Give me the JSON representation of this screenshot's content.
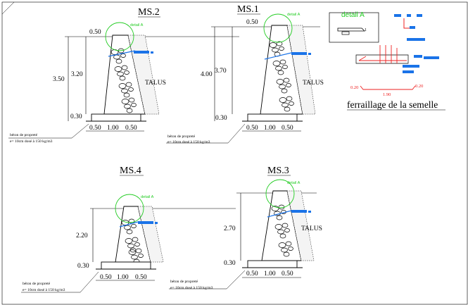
{
  "sheet": {
    "walls": [
      {
        "id": "ms2",
        "title": "MS.2",
        "top_dim": "0.50",
        "total_height": "3.50",
        "inner_height": "3.20",
        "base_dim": "0.30",
        "base_widths": [
          "0.50",
          "1.00",
          "0.50"
        ],
        "talus": "TALUS",
        "detail": "detail A",
        "note_line1": "béton de propreté",
        "note_line2": "e= 10cm dosé à 150 kg/m3"
      },
      {
        "id": "ms1",
        "title": "MS.1",
        "top_dim": "0.50",
        "total_height": "4.00",
        "inner_height": "3.70",
        "base_dim": "0.30",
        "base_widths": [
          "0.50",
          "1.00",
          "0.50"
        ],
        "talus": "TALUS",
        "detail": "detail A",
        "note_line1": "béton de propreté",
        "note_line2": "e= 10cm dosé à 150 kg/m3"
      },
      {
        "id": "ms4",
        "title": "MS.4",
        "top_dim": "",
        "total_height": "",
        "inner_height": "2.20",
        "base_dim": "0.30",
        "base_widths": [
          "0.50",
          "1.00",
          "0.50"
        ],
        "talus": "",
        "detail": "detail A",
        "note_line1": "béton de propreté",
        "note_line2": "e= 10cm dosé à 150 kg/m3"
      },
      {
        "id": "ms3",
        "title": "MS.3",
        "top_dim": "",
        "total_height": "",
        "inner_height": "2.70",
        "base_dim": "0.30",
        "base_widths": [
          "0.50",
          "1.00",
          "0.50"
        ],
        "talus": "TALUS",
        "detail": "detail A",
        "note_line1": "béton de propreté",
        "note_line2": "e= 10cm dosé à 150 kg/m3"
      }
    ],
    "detail_panel": {
      "label": "detail A",
      "left_dim": "0.20",
      "right_dim": "0.20",
      "span_dim": "1.90",
      "caption": "ferraillage de la semelle"
    },
    "colors": {
      "line": "#000000",
      "detail": "#22cc22",
      "rebar_blue": "#1a73e8",
      "rebar_red": "#ee2222"
    }
  }
}
